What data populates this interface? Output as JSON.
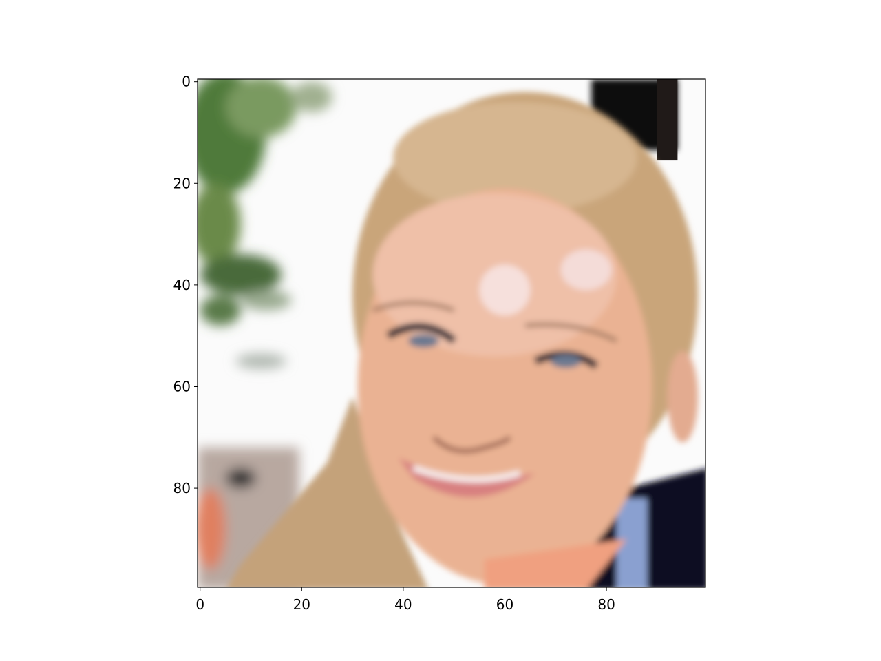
{
  "chart_data": {
    "type": "image",
    "title": "",
    "xlabel": "",
    "ylabel": "",
    "image_size": [
      100,
      100
    ],
    "xlim": [
      -0.5,
      99.5
    ],
    "ylim": [
      99.5,
      -0.5
    ],
    "xticks": [
      0,
      20,
      40,
      60,
      80
    ],
    "yticks": [
      0,
      20,
      40,
      60,
      80
    ],
    "xtick_labels": [
      "0",
      "20",
      "40",
      "60",
      "80"
    ],
    "ytick_labels": [
      "0",
      "20",
      "40",
      "60",
      "80"
    ],
    "grid": false,
    "legend": "none",
    "colors": {
      "hair": "#c9a57a",
      "skin": "#eab293",
      "foliage": "#4f7a3a",
      "jacket": "#101020"
    }
  }
}
